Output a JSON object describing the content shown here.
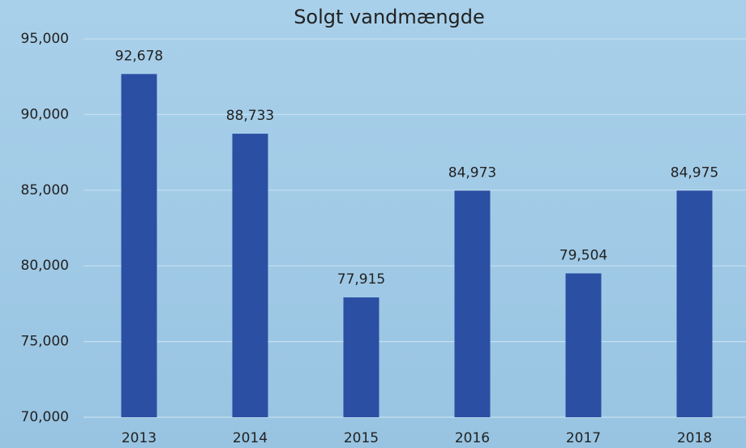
{
  "chart_data": {
    "type": "bar",
    "title": "Solgt vandmængde",
    "categories": [
      "2013",
      "2014",
      "2015",
      "2016",
      "2017",
      "2018"
    ],
    "values": [
      92678,
      88733,
      77915,
      84973,
      79504,
      84975
    ],
    "value_labels": [
      "92,678",
      "88,733",
      "77,915",
      "84,973",
      "79,504",
      "84,975"
    ],
    "color": "#2a4fa3",
    "ylim": [
      70000,
      95000
    ],
    "yticks": [
      {
        "value": 70000,
        "label": "70,000"
      },
      {
        "value": 75000,
        "label": "75,000"
      },
      {
        "value": 80000,
        "label": "80,000"
      },
      {
        "value": 85000,
        "label": "85,000"
      },
      {
        "value": 90000,
        "label": "90,000"
      },
      {
        "value": 95000,
        "label": "95,000"
      }
    ],
    "grid": true
  }
}
